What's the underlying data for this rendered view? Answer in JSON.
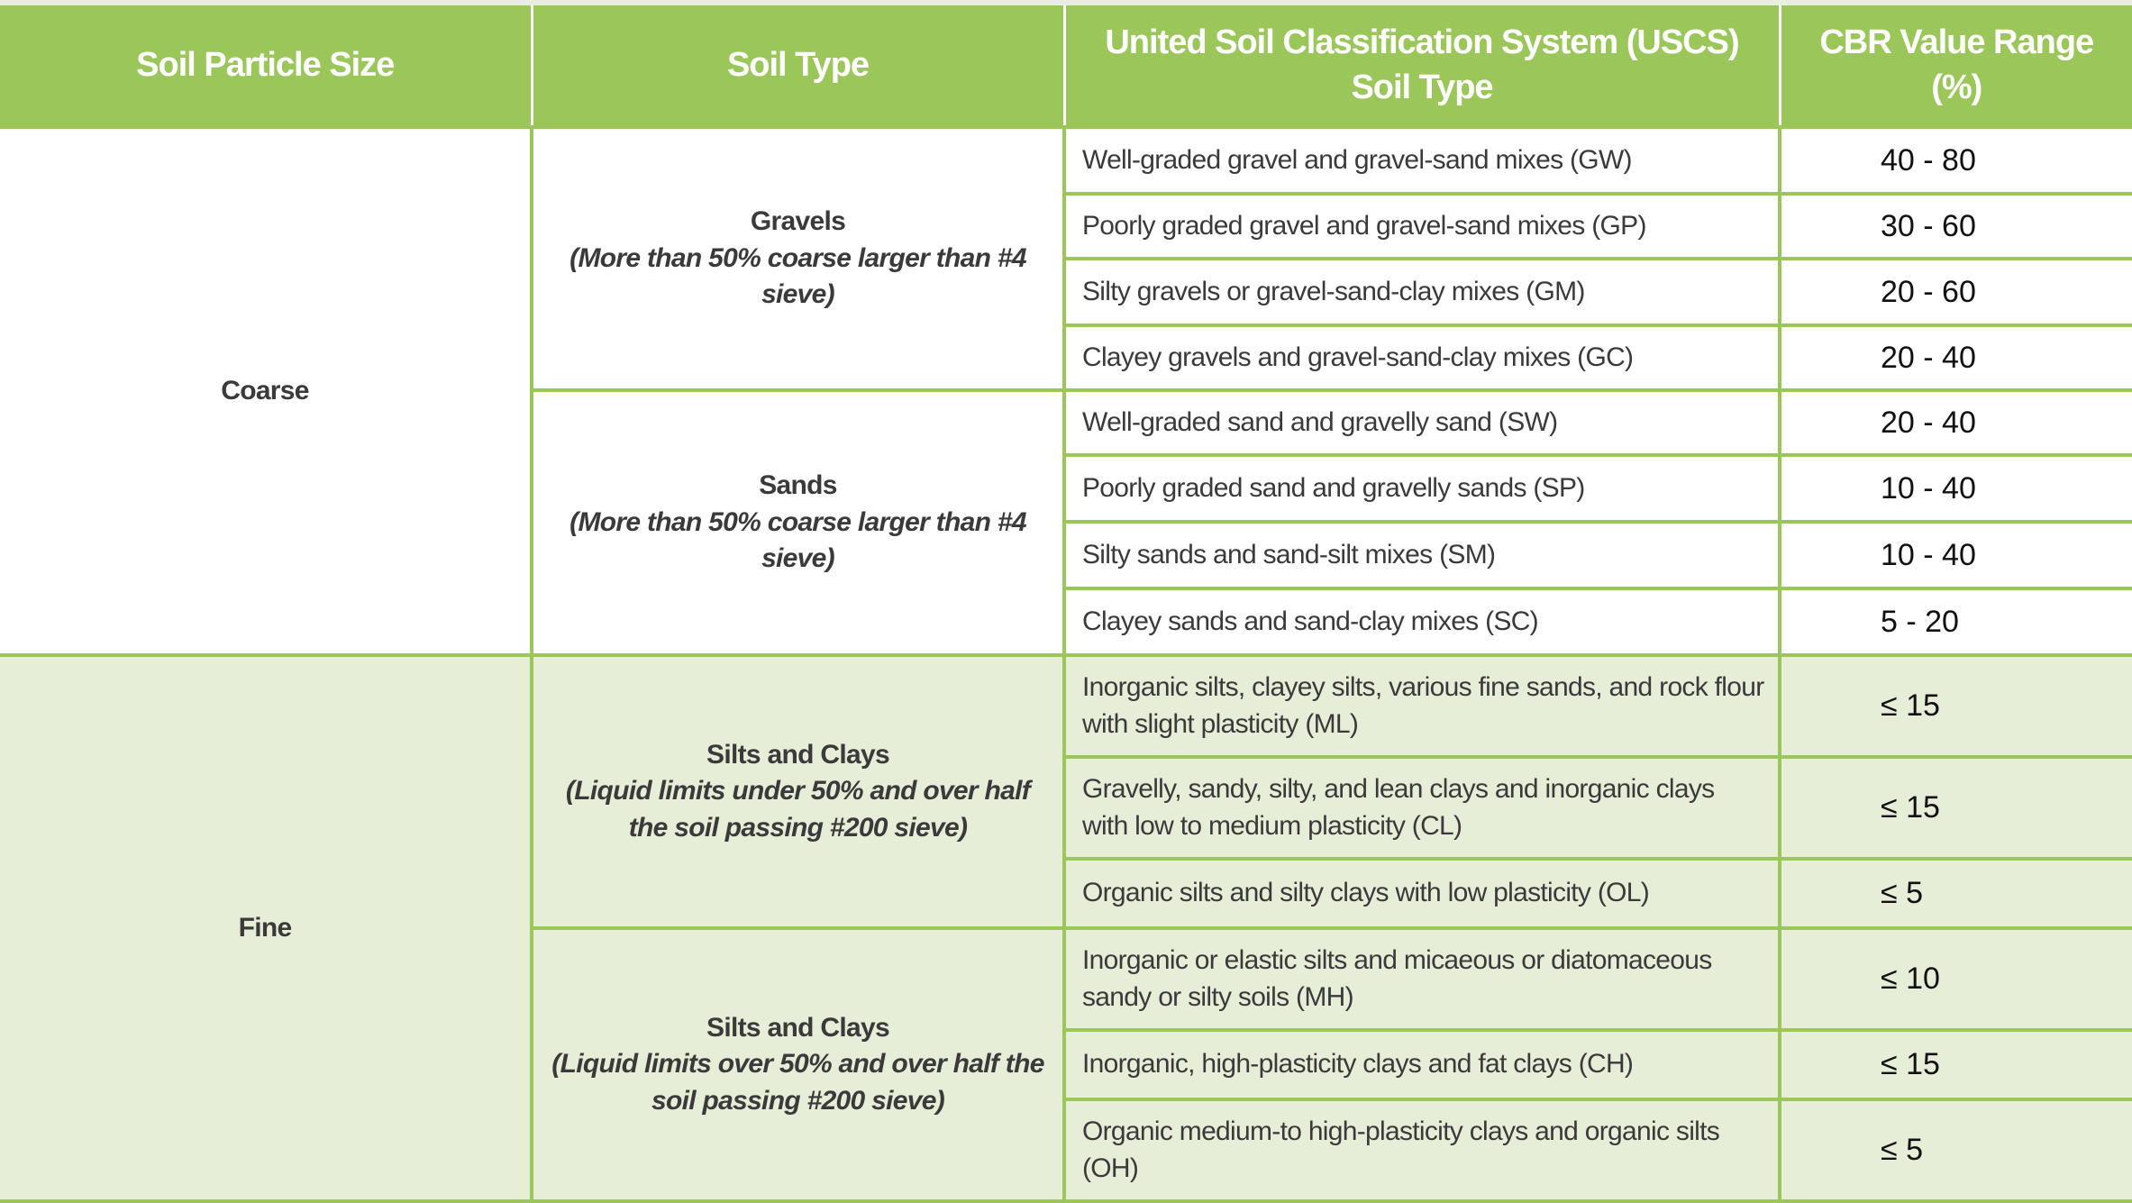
{
  "headers": [
    "Soil Particle Size",
    "Soil Type",
    "United Soil Classification System (USCS) Soil Type",
    "CBR Value Range (%)"
  ],
  "colors": {
    "header_green": "#9bc65a",
    "fine_row_bg": "#e6eed8",
    "text": "#3a3a3a"
  },
  "groups": [
    {
      "size": "Coarse",
      "types": [
        {
          "title": "Gravels",
          "desc": "(More than 50% coarse larger than #4 sieve)",
          "rows": [
            {
              "uscs": "Well-graded gravel and gravel-sand mixes (GW)",
              "cbr": "40 - 80"
            },
            {
              "uscs": "Poorly graded gravel and gravel-sand mixes (GP)",
              "cbr": "30 - 60"
            },
            {
              "uscs": "Silty gravels or gravel-sand-clay mixes (GM)",
              "cbr": "20 - 60"
            },
            {
              "uscs": "Clayey gravels and gravel-sand-clay mixes (GC)",
              "cbr": "20 - 40"
            }
          ]
        },
        {
          "title": "Sands",
          "desc": "(More than 50% coarse larger than #4 sieve)",
          "rows": [
            {
              "uscs": "Well-graded sand and gravelly sand (SW)",
              "cbr": "20 - 40"
            },
            {
              "uscs": "Poorly graded sand and gravelly sands (SP)",
              "cbr": "10 - 40"
            },
            {
              "uscs": "Silty sands and sand-silt mixes (SM)",
              "cbr": "10 - 40"
            },
            {
              "uscs": "Clayey sands and sand-clay mixes (SC)",
              "cbr": "5 - 20"
            }
          ]
        }
      ]
    },
    {
      "size": "Fine",
      "types": [
        {
          "title": "Silts and Clays",
          "desc": "(Liquid limits under 50% and over half the soil passing #200 sieve)",
          "rows": [
            {
              "uscs": "Inorganic silts, clayey silts, various fine sands, and rock flour with slight plasticity (ML)",
              "cbr": "≤ 15"
            },
            {
              "uscs": "Gravelly, sandy, silty, and lean clays and inorganic clays with low to medium plasticity (CL)",
              "cbr": "≤ 15"
            },
            {
              "uscs": "Organic silts and silty clays with low plasticity (OL)",
              "cbr": "≤ 5"
            }
          ]
        },
        {
          "title": "Silts and Clays",
          "desc": "(Liquid limits over 50% and over half the soil passing #200 sieve)",
          "rows": [
            {
              "uscs": "Inorganic or elastic silts and micaeous or diatomaceous sandy or silty soils (MH)",
              "cbr": "≤ 10"
            },
            {
              "uscs": "Inorganic, high-plasticity clays and fat clays (CH)",
              "cbr": "≤ 15"
            },
            {
              "uscs": "Organic medium-to high-plasticity clays and organic silts (OH)",
              "cbr": "≤ 5"
            }
          ]
        }
      ]
    }
  ]
}
